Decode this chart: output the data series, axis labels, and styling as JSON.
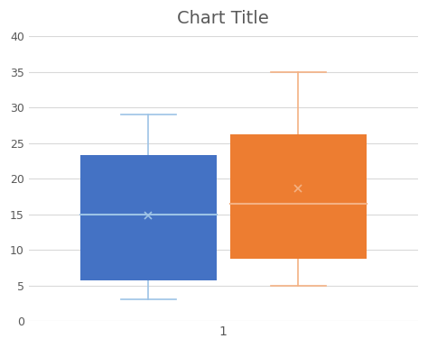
{
  "data1": [
    3,
    3,
    4,
    5,
    5,
    6,
    7,
    9,
    14,
    15,
    15,
    16,
    17,
    20,
    23,
    24,
    25,
    27,
    28,
    29
  ],
  "data2": [
    5,
    6,
    7,
    8,
    8,
    9,
    14,
    14,
    15,
    16,
    17,
    20,
    22,
    24,
    26,
    27,
    30,
    34,
    35,
    35
  ],
  "title": "Chart Title",
  "title_color": "#595959",
  "title_fontsize": 14,
  "xlabel": "1",
  "ylabel": "",
  "ylim": [
    0,
    40
  ],
  "yticks": [
    0,
    5,
    10,
    15,
    20,
    25,
    30,
    35,
    40
  ],
  "box_color1": "#4472C4",
  "box_color2": "#ED7D31",
  "whisker_color1": "#9DC3E6",
  "whisker_color2": "#F4B183",
  "background_color": "#ffffff",
  "plot_bg_color": "#ffffff",
  "grid_color": "#d9d9d9",
  "box_width": 0.35,
  "figsize": [
    4.74,
    3.86
  ],
  "dpi": 100
}
